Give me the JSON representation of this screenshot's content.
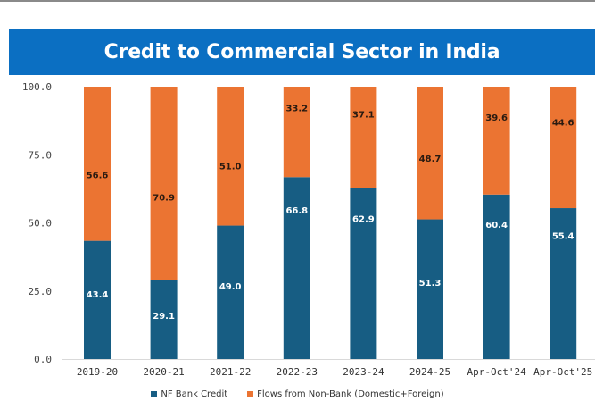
{
  "chart_data": {
    "type": "bar",
    "stacked": true,
    "title": "Credit to Commercial Sector in India",
    "xlabel": "",
    "ylabel": "",
    "ylim": [
      0,
      100
    ],
    "yticks": [
      "0.0",
      "25.0",
      "50.0",
      "75.0",
      "100.0"
    ],
    "ytick_values": [
      0,
      25,
      50,
      75,
      100
    ],
    "categories": [
      "2019-20",
      "2020-21",
      "2021-22",
      "2022-23",
      "2023-24",
      "2024-25",
      "Apr-Oct'24",
      "Apr-Oct'25"
    ],
    "series": [
      {
        "name": "NF Bank Credit",
        "color": "#175d83",
        "label_color": "#ffffff",
        "values": [
          43.4,
          29.1,
          49.0,
          66.8,
          62.9,
          51.3,
          60.4,
          55.4
        ],
        "labels": [
          "43.4",
          "29.1",
          "49.0",
          "66.8",
          "62.9",
          "51.3",
          "60.4",
          "55.4"
        ]
      },
      {
        "name": "Flows from Non-Bank (Domestic+Foreign)",
        "color": "#eb7432",
        "label_color": "#2a1a10",
        "values": [
          56.6,
          70.9,
          51.0,
          33.2,
          37.1,
          48.7,
          39.6,
          44.6
        ],
        "labels": [
          "56.6",
          "70.9",
          "51.0",
          "33.2",
          "37.1",
          "48.7",
          "39.6",
          "44.6"
        ]
      }
    ],
    "legend_position": "bottom",
    "grid": false
  },
  "legend": {
    "items": [
      {
        "label": "NF Bank Credit",
        "color": "#175d83"
      },
      {
        "label": "Flows from Non-Bank (Domestic+Foreign)",
        "color": "#eb7432"
      }
    ]
  }
}
